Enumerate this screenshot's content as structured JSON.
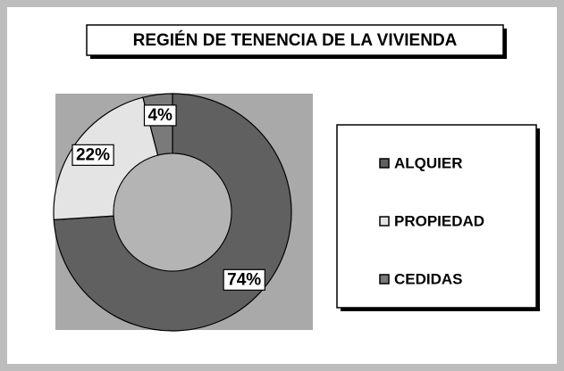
{
  "chart_data": {
    "type": "donut",
    "title": "REGIÉN DE TENENCIA DE LA VIVIENDA",
    "categories": [
      "ALQUIER",
      "PROPIEDAD",
      "CEDIDAS"
    ],
    "values": [
      74,
      22,
      4
    ],
    "value_labels": [
      "74%",
      "22%",
      "4%"
    ],
    "colors": [
      "#606060",
      "#e4e4e4",
      "#7a7a7a"
    ]
  }
}
